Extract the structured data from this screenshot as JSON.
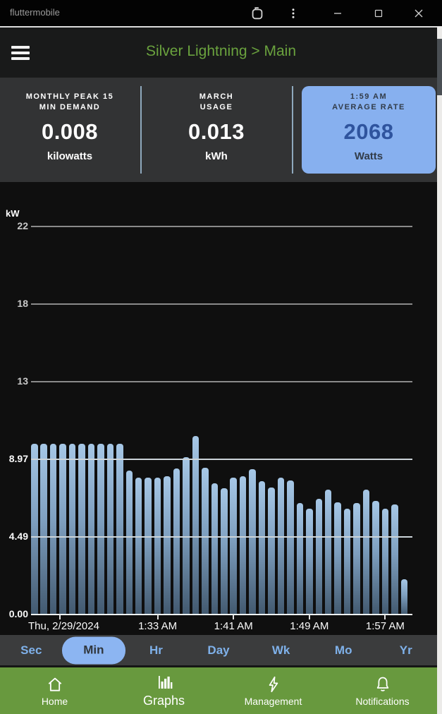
{
  "titlebar": {
    "app_name": "fluttermobile"
  },
  "appbar": {
    "title": "Silver Lightning > Main"
  },
  "stats": {
    "cards": [
      {
        "label_line1": "MONTHLY PEAK 15",
        "label_line2": "MIN DEMAND",
        "value": "0.008",
        "unit": "kilowatts",
        "highlighted": false
      },
      {
        "label_line1": "MARCH",
        "label_line2": "USAGE",
        "value": "0.013",
        "unit": "kWh",
        "highlighted": false
      },
      {
        "label_line1": "1:59 AM",
        "label_line2": "AVERAGE RATE",
        "value": "2068",
        "unit": "Watts",
        "highlighted": true
      }
    ]
  },
  "chart_data": {
    "type": "bar",
    "title": "",
    "ylabel": "kW",
    "xlabel": "",
    "ylim": [
      0,
      25.5
    ],
    "grid": true,
    "y_ticks": [
      {
        "label": "22",
        "value": 22.43,
        "style": "dim"
      },
      {
        "label": "18",
        "value": 17.94,
        "style": "dim"
      },
      {
        "label": "13",
        "value": 13.46,
        "style": "dim"
      },
      {
        "label": "8.97",
        "value": 8.97,
        "style": "light"
      },
      {
        "label": "4.49",
        "value": 4.49,
        "style": "light"
      },
      {
        "label": "0.00",
        "value": 0,
        "style": "base"
      }
    ],
    "x_ticks": [
      {
        "label": "Thu, 2/29/2024",
        "bar_index": 2.7,
        "align": "left"
      },
      {
        "label": "1:33 AM",
        "bar_index": 13
      },
      {
        "label": "1:41 AM",
        "bar_index": 21
      },
      {
        "label": "1:49 AM",
        "bar_index": 29
      },
      {
        "label": "1:57 AM",
        "bar_index": 37
      }
    ],
    "values": [
      9.85,
      9.85,
      9.85,
      9.85,
      9.85,
      9.85,
      9.85,
      9.85,
      9.85,
      9.85,
      8.3,
      7.9,
      7.9,
      7.9,
      8.0,
      8.45,
      9.1,
      10.3,
      8.5,
      7.6,
      7.3,
      7.9,
      8.0,
      8.4,
      7.7,
      7.35,
      7.9,
      7.75,
      6.45,
      6.1,
      6.7,
      7.2,
      6.5,
      6.1,
      6.45,
      7.2,
      6.55,
      6.1,
      6.35,
      2.05
    ],
    "bar_color_top": "#a6c7e6",
    "bar_color_bottom": "#42596f"
  },
  "range_tabs": {
    "options": [
      "Sec",
      "Min",
      "Hr",
      "Day",
      "Wk",
      "Mo",
      "Yr"
    ],
    "selected": "Min"
  },
  "bottom_nav": {
    "items": [
      {
        "label": "Home",
        "icon": "home-icon",
        "selected": false
      },
      {
        "label": "Graphs",
        "icon": "bar-chart-icon",
        "selected": true
      },
      {
        "label": "Management",
        "icon": "lightning-icon",
        "selected": false
      },
      {
        "label": "Notifications",
        "icon": "bell-icon",
        "selected": false
      }
    ]
  }
}
